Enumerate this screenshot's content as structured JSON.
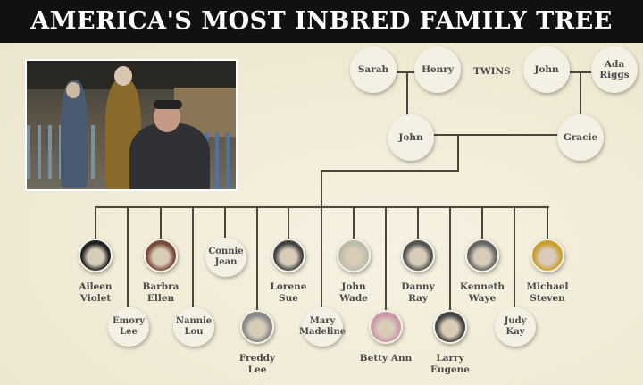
{
  "title": "AMERICA'S MOST INBRED FAMILY TREE",
  "grandparents": {
    "left_couple": [
      "Sarah",
      "Henry"
    ],
    "twins_label": "TWINS",
    "right_couple": [
      "John",
      "Ada Riggs"
    ]
  },
  "parents": [
    "John",
    "Gracie"
  ],
  "children": [
    {
      "name": "Aileen Violet",
      "photo": true
    },
    {
      "name": "Emory Lee",
      "photo": false
    },
    {
      "name": "Barbra Ellen",
      "photo": true
    },
    {
      "name": "Nannie Lou",
      "photo": false
    },
    {
      "name": "Connie Jean",
      "photo": false
    },
    {
      "name": "Freddy Lee",
      "photo": true
    },
    {
      "name": "Lorene Sue",
      "photo": true
    },
    {
      "name": "Mary Madeline",
      "photo": false
    },
    {
      "name": "John Wade",
      "photo": true
    },
    {
      "name": "Betty Ann",
      "photo": true
    },
    {
      "name": "Danny Ray",
      "photo": true
    },
    {
      "name": "Larry Eugene",
      "photo": true
    },
    {
      "name": "Kenneth Waye",
      "photo": true
    },
    {
      "name": "Judy Kay",
      "photo": false
    },
    {
      "name": "Michael Steven",
      "photo": true
    }
  ],
  "colors": {
    "title_bar": "#111111",
    "background": "#efe9d4",
    "line": "#4b463c"
  }
}
